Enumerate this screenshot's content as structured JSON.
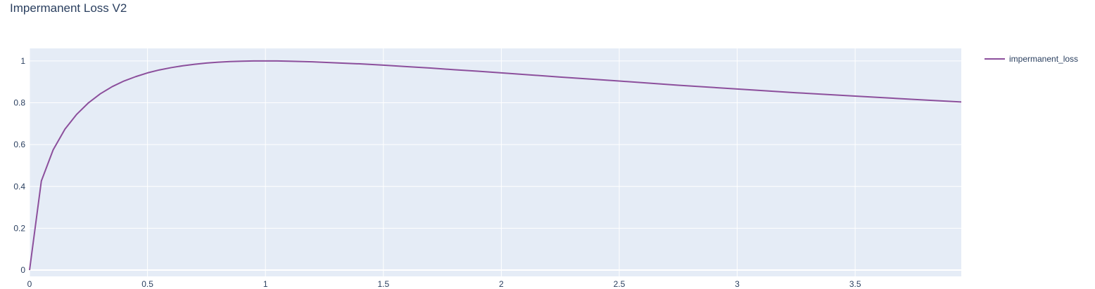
{
  "chart_data": {
    "type": "line",
    "title": "Impermanent Loss V2",
    "xlabel": "",
    "ylabel": "",
    "xlim": [
      0,
      3.95
    ],
    "ylim": [
      -0.03,
      1.06
    ],
    "x_ticks": [
      0,
      0.5,
      1,
      1.5,
      2,
      2.5,
      3,
      3.5
    ],
    "x_tick_labels": [
      "0",
      "0.5",
      "1",
      "1.5",
      "2",
      "2.5",
      "3",
      "3.5"
    ],
    "y_ticks": [
      0,
      0.2,
      0.4,
      0.6,
      0.8,
      1
    ],
    "y_tick_labels": [
      "0",
      "0.2",
      "0.4",
      "0.6",
      "0.8",
      "1"
    ],
    "grid": true,
    "legend_position": "top-right",
    "colors": {
      "series": "#8c4f9c",
      "plot_bg": "#e5ecf6",
      "grid": "#ffffff",
      "text": "#2a3f5f"
    },
    "series": [
      {
        "name": "impermanent_loss",
        "x": [
          0,
          0.05,
          0.1,
          0.15,
          0.2,
          0.25,
          0.3,
          0.35,
          0.4,
          0.45,
          0.5,
          0.55,
          0.6,
          0.65,
          0.7,
          0.75,
          0.8,
          0.85,
          0.9,
          0.95,
          1,
          1.05,
          1.1,
          1.2,
          1.3,
          1.4,
          1.5,
          1.6,
          1.7,
          1.8,
          1.9,
          2,
          2.25,
          2.5,
          2.75,
          3,
          3.25,
          3.5,
          3.75,
          3.95
        ],
        "y": [
          0,
          0.426,
          0.575,
          0.674,
          0.745,
          0.8,
          0.843,
          0.877,
          0.904,
          0.925,
          0.943,
          0.957,
          0.968,
          0.977,
          0.984,
          0.99,
          0.994,
          0.997,
          0.999,
          1.0,
          1.0,
          1.0,
          0.999,
          0.996,
          0.991,
          0.986,
          0.98,
          0.973,
          0.966,
          0.958,
          0.951,
          0.943,
          0.923,
          0.904,
          0.884,
          0.866,
          0.848,
          0.832,
          0.816,
          0.804
        ]
      }
    ]
  }
}
